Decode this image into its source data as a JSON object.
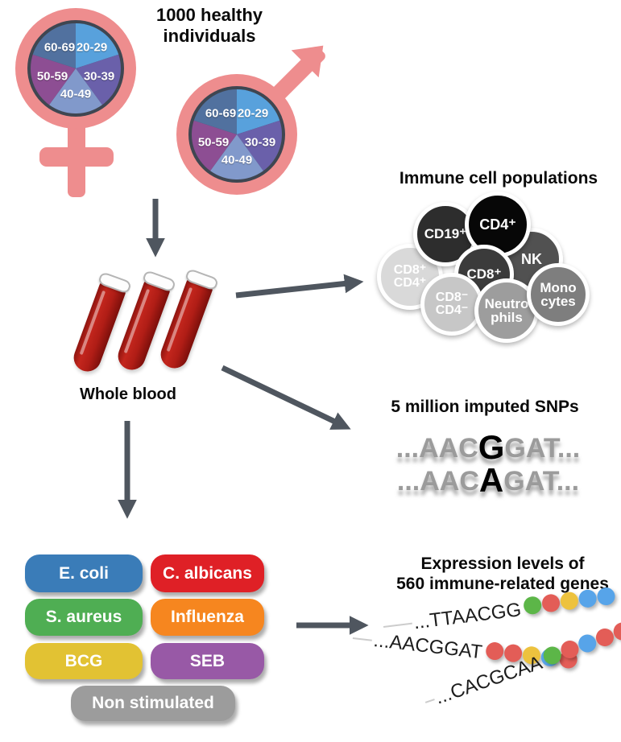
{
  "title": "1000 healthy individuals",
  "demographics": {
    "age_groups": [
      "20-29",
      "30-39",
      "40-49",
      "50-59",
      "60-69"
    ],
    "slice_colors": {
      "20-29": "#58a1dc",
      "30-39": "#6a60aa",
      "40-49": "#8199cb",
      "50-59": "#8d4e93",
      "60-69": "#51719f"
    },
    "gender_symbol_color": "#ee8d8e"
  },
  "whole_blood": {
    "label": "Whole blood"
  },
  "immune_cells": {
    "heading": "Immune cell populations",
    "cells": [
      {
        "lines": [
          "CD8⁺",
          "CD4⁺"
        ],
        "color": "#d9d9d9"
      },
      {
        "lines": [
          "CD19⁺"
        ],
        "color": "#2d2d2d"
      },
      {
        "lines": [
          "NK"
        ],
        "color": "#515151"
      },
      {
        "lines": [
          "CD4⁺"
        ],
        "color": "#070707"
      },
      {
        "lines": [
          "CD8⁺"
        ],
        "color": "#3b3b3b"
      },
      {
        "lines": [
          "CD8⁻",
          "CD4⁻"
        ],
        "color": "#c7c7c7"
      },
      {
        "lines": [
          "Neutro",
          "phils"
        ],
        "color": "#9d9d9d"
      },
      {
        "lines": [
          "Mono",
          "cytes"
        ],
        "color": "#7e7e7e"
      }
    ]
  },
  "snps": {
    "heading": "5 million imputed SNPs",
    "sequences": [
      {
        "prefix": "...AAC",
        "snp": "G",
        "suffix": "GAT..."
      },
      {
        "prefix": "...AAC",
        "snp": "A",
        "suffix": "GAT..."
      }
    ]
  },
  "stimuli": {
    "items": [
      {
        "label": "E. coli",
        "color": "#3a7cb8"
      },
      {
        "label": "C. albicans",
        "color": "#df2026"
      },
      {
        "label": "S. aureus",
        "color": "#4fae53"
      },
      {
        "label": "Influenza",
        "color": "#f6861f"
      },
      {
        "label": "BCG",
        "color": "#e2c233"
      },
      {
        "label": "SEB",
        "color": "#9859a6"
      },
      {
        "label": "Non stimulated",
        "color": "#9c9c9c"
      }
    ]
  },
  "expression": {
    "heading_line1": "Expression levels of",
    "heading_line2": "560 immune-related genes",
    "strings": [
      {
        "text": "...TTAACGG",
        "dots": [
          "green",
          "red",
          "yellow",
          "blue",
          "blue"
        ]
      },
      {
        "text": "...AACGGAT",
        "dots": [
          "red",
          "red",
          "yellow",
          "blue",
          "red"
        ]
      },
      {
        "text": "...CACGCAA",
        "dots": [
          "green",
          "red",
          "blue",
          "red",
          "red"
        ]
      }
    ],
    "dot_colors": {
      "green": "#5cb648",
      "red": "#e35d57",
      "yellow": "#edc23e",
      "blue": "#57a4e9"
    }
  },
  "arrow_color": "#4f565f"
}
